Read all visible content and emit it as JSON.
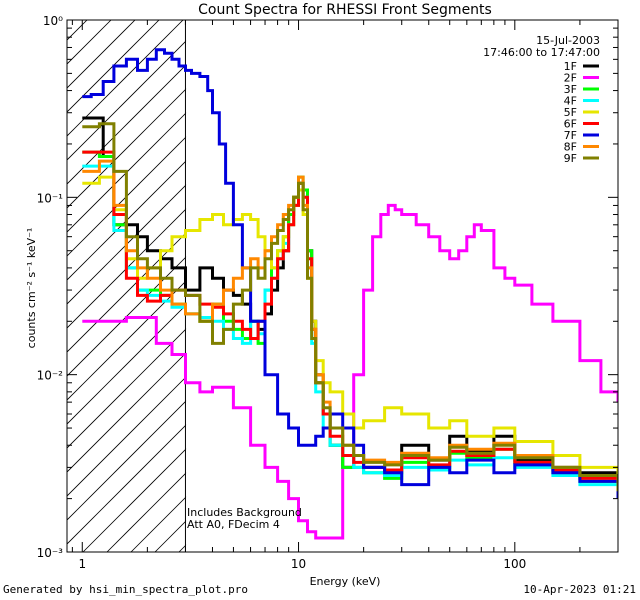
{
  "chart_data": {
    "type": "line",
    "title": "Count Spectra for RHESSI Front Segments",
    "xlabel": "Energy (keV)",
    "ylabel": "counts cm⁻² s⁻¹ keV⁻¹",
    "xscale": "log",
    "yscale": "log",
    "xlim": [
      0.85,
      300
    ],
    "ylim": [
      0.001,
      1
    ],
    "x_ticks": [
      {
        "value": 1,
        "label": "1"
      },
      {
        "value": 10,
        "label": "10"
      },
      {
        "value": 100,
        "label": "100"
      }
    ],
    "y_ticks": [
      {
        "value": 1,
        "label": "10⁰"
      },
      {
        "value": 0.1,
        "label": "10⁻¹"
      },
      {
        "value": 0.01,
        "label": "10⁻²"
      },
      {
        "value": 0.001,
        "label": "10⁻³"
      }
    ],
    "date": "15-Jul-2003",
    "time_range": "17:46:00 to 17:47:00",
    "hatch_region_kev": [
      0.85,
      3
    ],
    "annotations": [
      "Includes Background",
      "Att A0, FDecim 4"
    ],
    "series": [
      {
        "name": "1F",
        "color": "#000000",
        "x": [
          1,
          1.1,
          1.25,
          1.4,
          1.6,
          1.8,
          2,
          2.3,
          2.6,
          3,
          3.5,
          4,
          4.5,
          5,
          5.5,
          6,
          6.5,
          7,
          7.5,
          8,
          8.5,
          9,
          9.5,
          10,
          10.5,
          11,
          11.5,
          12,
          13,
          14,
          16,
          18,
          20,
          25,
          30,
          40,
          50,
          60,
          80,
          100,
          150,
          200,
          300
        ],
        "y": [
          0.28,
          0.28,
          0.17,
          0.07,
          0.07,
          0.06,
          0.05,
          0.045,
          0.04,
          0.03,
          0.04,
          0.035,
          0.03,
          0.028,
          0.025,
          0.02,
          0.018,
          0.022,
          0.03,
          0.04,
          0.05,
          0.08,
          0.1,
          0.12,
          0.11,
          0.05,
          0.02,
          0.01,
          0.006,
          0.004,
          0.003,
          0.0035,
          0.003,
          0.0028,
          0.004,
          0.0033,
          0.0045,
          0.0037,
          0.0045,
          0.0033,
          0.003,
          0.0028,
          0.002
        ]
      },
      {
        "name": "2F",
        "color": "#ff00ff",
        "x": [
          1,
          1.3,
          1.6,
          1.9,
          2.2,
          2.6,
          3,
          3.5,
          4,
          5,
          6,
          7,
          8,
          9,
          10,
          11,
          12,
          14,
          16,
          18,
          20,
          22,
          24,
          26,
          28,
          30,
          35,
          40,
          45,
          50,
          55,
          60,
          65,
          70,
          80,
          90,
          100,
          120,
          150,
          200,
          250,
          300
        ],
        "y": [
          0.02,
          0.02,
          0.021,
          0.021,
          0.015,
          0.013,
          0.009,
          0.008,
          0.0085,
          0.0065,
          0.004,
          0.003,
          0.0025,
          0.002,
          0.0015,
          0.0013,
          0.0012,
          0.0012,
          0.003,
          0.01,
          0.03,
          0.06,
          0.08,
          0.09,
          0.085,
          0.08,
          0.07,
          0.06,
          0.05,
          0.045,
          0.05,
          0.06,
          0.07,
          0.065,
          0.04,
          0.035,
          0.032,
          0.025,
          0.02,
          0.012,
          0.008,
          0.007
        ]
      },
      {
        "name": "3F",
        "color": "#00ff00",
        "x": [
          1,
          1.2,
          1.4,
          1.6,
          1.8,
          2,
          2.3,
          2.6,
          3,
          3.5,
          4,
          4.5,
          5,
          5.5,
          6,
          6.5,
          7,
          7.5,
          8,
          8.5,
          9,
          9.5,
          10,
          10.5,
          11,
          11.5,
          12,
          13,
          14,
          16,
          18,
          20,
          25,
          30,
          40,
          50,
          60,
          80,
          100,
          150,
          200,
          300
        ],
        "y": [
          0.18,
          0.17,
          0.07,
          0.04,
          0.03,
          0.03,
          0.028,
          0.025,
          0.022,
          0.02,
          0.025,
          0.02,
          0.018,
          0.016,
          0.02,
          0.015,
          0.03,
          0.04,
          0.05,
          0.06,
          0.08,
          0.1,
          0.13,
          0.11,
          0.05,
          0.018,
          0.009,
          0.006,
          0.004,
          0.003,
          0.003,
          0.0028,
          0.0026,
          0.0032,
          0.003,
          0.0036,
          0.0034,
          0.0038,
          0.0032,
          0.0028,
          0.0025,
          0.002
        ]
      },
      {
        "name": "4F",
        "color": "#00ffff",
        "x": [
          1,
          1.2,
          1.4,
          1.6,
          1.8,
          2,
          2.3,
          2.6,
          3,
          3.5,
          4,
          4.5,
          5,
          5.5,
          6,
          6.5,
          7,
          7.5,
          8,
          8.5,
          9,
          9.5,
          10,
          10.5,
          11,
          11.5,
          12,
          13,
          14,
          16,
          18,
          20,
          25,
          30,
          40,
          50,
          60,
          80,
          100,
          150,
          200,
          300
        ],
        "y": [
          0.15,
          0.15,
          0.065,
          0.04,
          0.03,
          0.028,
          0.026,
          0.024,
          0.022,
          0.021,
          0.02,
          0.018,
          0.016,
          0.015,
          0.02,
          0.017,
          0.03,
          0.035,
          0.045,
          0.055,
          0.07,
          0.09,
          0.11,
          0.1,
          0.04,
          0.015,
          0.008,
          0.005,
          0.004,
          0.0035,
          0.003,
          0.0028,
          0.0027,
          0.003,
          0.0029,
          0.0033,
          0.0031,
          0.0034,
          0.003,
          0.0027,
          0.0024,
          0.002
        ]
      },
      {
        "name": "5F",
        "color": "#e6e600",
        "x": [
          1,
          1.2,
          1.4,
          1.6,
          1.8,
          2,
          2.3,
          2.6,
          3,
          3.5,
          4,
          4.5,
          5,
          5.5,
          6,
          6.5,
          7,
          7.5,
          8,
          8.5,
          9,
          9.5,
          10,
          10.5,
          11,
          11.5,
          12,
          13,
          14,
          16,
          18,
          20,
          25,
          30,
          40,
          50,
          60,
          80,
          100,
          150,
          200,
          300
        ],
        "y": [
          0.12,
          0.13,
          0.085,
          0.045,
          0.035,
          0.04,
          0.05,
          0.06,
          0.065,
          0.075,
          0.08,
          0.07,
          0.075,
          0.08,
          0.075,
          0.06,
          0.05,
          0.04,
          0.05,
          0.06,
          0.07,
          0.09,
          0.11,
          0.08,
          0.035,
          0.02,
          0.012,
          0.009,
          0.008,
          0.006,
          0.005,
          0.0055,
          0.0065,
          0.006,
          0.005,
          0.0055,
          0.0045,
          0.005,
          0.0042,
          0.0035,
          0.003,
          0.0025
        ]
      },
      {
        "name": "6F",
        "color": "#ff0000",
        "x": [
          1,
          1.2,
          1.4,
          1.6,
          1.8,
          2,
          2.3,
          2.6,
          3,
          3.5,
          4,
          4.5,
          5,
          5.5,
          6,
          6.5,
          7,
          7.5,
          8,
          8.5,
          9,
          9.5,
          10,
          10.5,
          11,
          11.5,
          12,
          13,
          14,
          16,
          18,
          20,
          25,
          30,
          40,
          50,
          60,
          80,
          100,
          150,
          200,
          300
        ],
        "y": [
          0.18,
          0.18,
          0.08,
          0.035,
          0.028,
          0.026,
          0.028,
          0.03,
          0.028,
          0.025,
          0.024,
          0.022,
          0.02,
          0.018,
          0.016,
          0.02,
          0.025,
          0.035,
          0.045,
          0.05,
          0.07,
          0.09,
          0.12,
          0.1,
          0.045,
          0.018,
          0.009,
          0.006,
          0.0045,
          0.0035,
          0.0032,
          0.003,
          0.0029,
          0.0034,
          0.0031,
          0.0037,
          0.0035,
          0.0038,
          0.0032,
          0.0029,
          0.0026,
          0.0022
        ]
      },
      {
        "name": "7F",
        "color": "#0000dd",
        "x": [
          1,
          1.1,
          1.25,
          1.4,
          1.6,
          1.8,
          2,
          2.2,
          2.4,
          2.6,
          2.8,
          3,
          3.2,
          3.5,
          3.8,
          4,
          4.3,
          4.6,
          5,
          5.5,
          6,
          7,
          8,
          9,
          10,
          11,
          12,
          13,
          14,
          16,
          18,
          20,
          25,
          30,
          40,
          50,
          60,
          80,
          100,
          150,
          200,
          300
        ],
        "y": [
          0.37,
          0.38,
          0.45,
          0.55,
          0.6,
          0.52,
          0.6,
          0.68,
          0.65,
          0.6,
          0.55,
          0.52,
          0.5,
          0.48,
          0.4,
          0.3,
          0.2,
          0.12,
          0.07,
          0.04,
          0.02,
          0.01,
          0.006,
          0.005,
          0.004,
          0.004,
          0.0045,
          0.005,
          0.006,
          0.005,
          0.004,
          0.003,
          0.0028,
          0.0024,
          0.003,
          0.0028,
          0.0033,
          0.0028,
          0.0031,
          0.0028,
          0.0025,
          0.002
        ]
      },
      {
        "name": "8F",
        "color": "#ff8800",
        "x": [
          1,
          1.2,
          1.4,
          1.6,
          1.8,
          2,
          2.3,
          2.6,
          3,
          3.5,
          4,
          4.5,
          5,
          5.5,
          6,
          6.5,
          7,
          7.5,
          8,
          8.5,
          9,
          9.5,
          10,
          10.5,
          11,
          11.5,
          12,
          13,
          14,
          16,
          18,
          20,
          25,
          30,
          40,
          50,
          60,
          80,
          100,
          150,
          200,
          300
        ],
        "y": [
          0.14,
          0.16,
          0.09,
          0.05,
          0.04,
          0.035,
          0.03,
          0.025,
          0.022,
          0.02,
          0.025,
          0.03,
          0.035,
          0.04,
          0.045,
          0.04,
          0.05,
          0.06,
          0.07,
          0.08,
          0.09,
          0.1,
          0.13,
          0.09,
          0.04,
          0.018,
          0.01,
          0.007,
          0.005,
          0.004,
          0.0035,
          0.0033,
          0.0032,
          0.0036,
          0.0034,
          0.004,
          0.0038,
          0.0041,
          0.0035,
          0.003,
          0.0027,
          0.0023
        ]
      },
      {
        "name": "9F",
        "color": "#808000",
        "x": [
          1,
          1.2,
          1.4,
          1.6,
          1.8,
          2,
          2.3,
          2.6,
          3,
          3.5,
          4,
          4.5,
          5,
          5.5,
          6,
          6.5,
          7,
          7.5,
          8,
          8.5,
          9,
          9.5,
          10,
          10.5,
          11,
          11.5,
          12,
          13,
          14,
          16,
          18,
          20,
          25,
          30,
          40,
          50,
          60,
          80,
          100,
          150,
          200,
          300
        ],
        "y": [
          0.25,
          0.26,
          0.14,
          0.06,
          0.045,
          0.04,
          0.035,
          0.03,
          0.028,
          0.02,
          0.015,
          0.018,
          0.025,
          0.03,
          0.04,
          0.035,
          0.045,
          0.055,
          0.065,
          0.075,
          0.085,
          0.1,
          0.12,
          0.085,
          0.035,
          0.016,
          0.009,
          0.0065,
          0.005,
          0.004,
          0.0035,
          0.0032,
          0.0031,
          0.0035,
          0.0033,
          0.0039,
          0.0036,
          0.004,
          0.0034,
          0.003,
          0.0027,
          0.0022
        ]
      }
    ]
  },
  "footer": {
    "left": "Generated by hsi_min_spectra_plot.pro",
    "right": "10-Apr-2023 01:21"
  }
}
